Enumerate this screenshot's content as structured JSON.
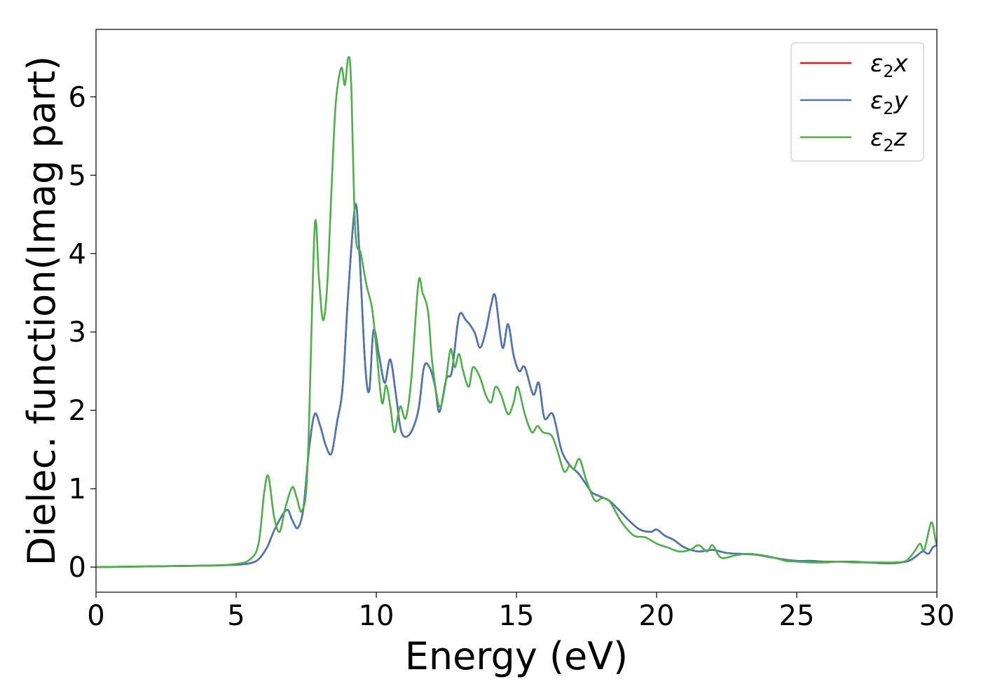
{
  "chart_data": {
    "type": "line",
    "title": "",
    "xlabel": "Energy (eV)",
    "ylabel": "Dielec. function(Imag part)",
    "xlim": [
      0,
      30
    ],
    "ylim": [
      -0.32,
      6.86
    ],
    "xticks": [
      0,
      5,
      10,
      15,
      20,
      25,
      30
    ],
    "yticks": [
      0,
      1,
      2,
      3,
      4,
      5,
      6
    ],
    "grid": false,
    "legend_position": "top-right",
    "series": [
      {
        "name": "ε2x",
        "legend_base": "ε",
        "legend_sub": "2",
        "legend_var": "x",
        "color": "#e41a1c",
        "x": [
          0,
          2,
          4,
          5,
          5.5,
          5.8,
          6.1,
          6.4,
          6.8,
          7.0,
          7.2,
          7.4,
          7.6,
          7.8,
          8.0,
          8.2,
          8.4,
          8.6,
          8.8,
          9.0,
          9.25,
          9.4,
          9.6,
          9.75,
          9.9,
          10.1,
          10.3,
          10.5,
          10.7,
          10.9,
          11.2,
          11.5,
          11.7,
          11.9,
          12.1,
          12.25,
          12.5,
          12.7,
          12.95,
          13.2,
          13.5,
          13.7,
          13.9,
          14.1,
          14.25,
          14.5,
          14.7,
          14.9,
          15.1,
          15.3,
          15.6,
          15.8,
          16.0,
          16.3,
          16.6,
          16.9,
          17.2,
          17.5,
          17.7,
          18.0,
          18.3,
          18.6,
          19.0,
          19.4,
          19.8,
          20.0,
          20.3,
          20.6,
          21.0,
          21.5,
          22.0,
          22.5,
          23.0,
          23.5,
          24.0,
          24.5,
          25.0,
          25.5,
          26.0,
          26.5,
          27.0,
          27.5,
          28.0,
          28.5,
          29.0,
          29.3,
          29.5,
          29.7,
          29.85,
          30.0
        ],
        "y": [
          0.0,
          0.01,
          0.02,
          0.03,
          0.05,
          0.1,
          0.25,
          0.5,
          0.73,
          0.6,
          0.5,
          0.75,
          1.5,
          1.95,
          1.8,
          1.55,
          1.45,
          1.85,
          2.3,
          3.5,
          4.62,
          4.0,
          2.6,
          2.25,
          3.02,
          2.7,
          2.35,
          2.65,
          2.2,
          1.72,
          1.7,
          2.0,
          2.55,
          2.55,
          2.3,
          1.98,
          2.4,
          2.5,
          3.2,
          3.15,
          3.0,
          2.8,
          3.0,
          3.35,
          3.45,
          2.8,
          3.1,
          2.7,
          2.5,
          2.55,
          2.2,
          2.35,
          1.9,
          1.95,
          1.5,
          1.3,
          1.2,
          1.05,
          0.95,
          0.9,
          0.85,
          0.75,
          0.6,
          0.48,
          0.45,
          0.48,
          0.4,
          0.35,
          0.25,
          0.2,
          0.22,
          0.18,
          0.17,
          0.16,
          0.13,
          0.1,
          0.08,
          0.08,
          0.07,
          0.07,
          0.07,
          0.06,
          0.05,
          0.05,
          0.08,
          0.15,
          0.2,
          0.17,
          0.25,
          0.28
        ]
      },
      {
        "name": "ε2y",
        "legend_base": "ε",
        "legend_sub": "2",
        "legend_var": "y",
        "color": "#4a78b0",
        "x": [
          0,
          2,
          4,
          5,
          5.5,
          5.8,
          6.1,
          6.4,
          6.8,
          7.0,
          7.2,
          7.4,
          7.6,
          7.8,
          8.0,
          8.2,
          8.4,
          8.6,
          8.8,
          9.0,
          9.25,
          9.4,
          9.6,
          9.75,
          9.9,
          10.1,
          10.3,
          10.5,
          10.7,
          10.9,
          11.2,
          11.5,
          11.7,
          11.9,
          12.1,
          12.25,
          12.5,
          12.7,
          12.95,
          13.2,
          13.5,
          13.7,
          13.9,
          14.1,
          14.25,
          14.5,
          14.7,
          14.9,
          15.1,
          15.3,
          15.6,
          15.8,
          16.0,
          16.3,
          16.6,
          16.9,
          17.2,
          17.5,
          17.7,
          18.0,
          18.3,
          18.6,
          19.0,
          19.4,
          19.8,
          20.0,
          20.3,
          20.6,
          21.0,
          21.5,
          22.0,
          22.5,
          23.0,
          23.5,
          24.0,
          24.5,
          25.0,
          25.5,
          26.0,
          26.5,
          27.0,
          27.5,
          28.0,
          28.5,
          29.0,
          29.3,
          29.5,
          29.7,
          29.85,
          30.0
        ],
        "y": [
          0.0,
          0.01,
          0.02,
          0.03,
          0.05,
          0.1,
          0.25,
          0.5,
          0.73,
          0.6,
          0.5,
          0.75,
          1.5,
          1.95,
          1.8,
          1.55,
          1.45,
          1.85,
          2.3,
          3.5,
          4.62,
          4.0,
          2.6,
          2.25,
          3.02,
          2.7,
          2.35,
          2.65,
          2.2,
          1.72,
          1.7,
          2.0,
          2.55,
          2.55,
          2.3,
          1.98,
          2.4,
          2.5,
          3.2,
          3.15,
          3.0,
          2.8,
          3.0,
          3.35,
          3.45,
          2.8,
          3.1,
          2.7,
          2.5,
          2.55,
          2.2,
          2.35,
          1.9,
          1.95,
          1.5,
          1.3,
          1.2,
          1.05,
          0.95,
          0.9,
          0.85,
          0.75,
          0.6,
          0.48,
          0.45,
          0.48,
          0.4,
          0.35,
          0.25,
          0.2,
          0.22,
          0.18,
          0.17,
          0.16,
          0.13,
          0.1,
          0.08,
          0.08,
          0.07,
          0.07,
          0.07,
          0.06,
          0.05,
          0.05,
          0.08,
          0.15,
          0.2,
          0.17,
          0.25,
          0.28
        ]
      },
      {
        "name": "ε2z",
        "legend_base": "ε",
        "legend_sub": "2",
        "legend_var": "z",
        "color": "#4daf4a",
        "x": [
          0,
          2,
          4,
          5,
          5.5,
          5.8,
          6.0,
          6.15,
          6.35,
          6.55,
          6.75,
          7.0,
          7.15,
          7.35,
          7.55,
          7.8,
          7.95,
          8.1,
          8.25,
          8.4,
          8.55,
          8.75,
          8.88,
          9.0,
          9.1,
          9.25,
          9.45,
          9.65,
          9.85,
          10.0,
          10.2,
          10.35,
          10.5,
          10.65,
          10.85,
          11.05,
          11.25,
          11.5,
          11.65,
          11.85,
          12.0,
          12.25,
          12.45,
          12.65,
          12.8,
          12.95,
          13.1,
          13.3,
          13.45,
          13.7,
          13.9,
          14.1,
          14.25,
          14.45,
          14.7,
          14.9,
          15.05,
          15.3,
          15.55,
          15.75,
          15.95,
          16.25,
          16.45,
          16.7,
          16.9,
          17.05,
          17.25,
          17.5,
          17.8,
          18.05,
          18.3,
          18.55,
          18.8,
          19.2,
          19.6,
          20.0,
          20.4,
          20.8,
          21.2,
          21.5,
          21.8,
          22.0,
          22.3,
          22.8,
          23.3,
          23.8,
          24.2,
          24.6,
          25.0,
          25.5,
          26.0,
          26.5,
          27.0,
          27.5,
          28.0,
          28.5,
          28.9,
          29.2,
          29.4,
          29.55,
          29.8,
          29.95,
          30.0
        ],
        "y": [
          0.0,
          0.01,
          0.02,
          0.04,
          0.1,
          0.3,
          0.95,
          1.16,
          0.65,
          0.45,
          0.75,
          1.02,
          0.9,
          0.72,
          1.3,
          4.32,
          3.7,
          3.15,
          3.6,
          4.8,
          5.9,
          6.37,
          6.15,
          6.5,
          6.2,
          4.3,
          4.0,
          3.6,
          3.3,
          2.8,
          2.1,
          2.32,
          2.05,
          1.72,
          2.05,
          1.9,
          2.4,
          3.62,
          3.5,
          3.25,
          2.6,
          2.05,
          2.3,
          2.78,
          2.55,
          2.72,
          2.5,
          2.3,
          2.55,
          2.42,
          2.2,
          2.1,
          2.3,
          2.2,
          1.95,
          2.1,
          2.3,
          1.95,
          1.72,
          1.8,
          1.72,
          1.68,
          1.5,
          1.22,
          1.3,
          1.25,
          1.38,
          1.1,
          0.85,
          0.88,
          0.85,
          0.7,
          0.55,
          0.4,
          0.38,
          0.3,
          0.25,
          0.2,
          0.22,
          0.28,
          0.2,
          0.28,
          0.12,
          0.15,
          0.17,
          0.15,
          0.12,
          0.08,
          0.07,
          0.06,
          0.06,
          0.07,
          0.06,
          0.06,
          0.06,
          0.06,
          0.08,
          0.2,
          0.3,
          0.22,
          0.57,
          0.35,
          0.28
        ]
      }
    ]
  }
}
